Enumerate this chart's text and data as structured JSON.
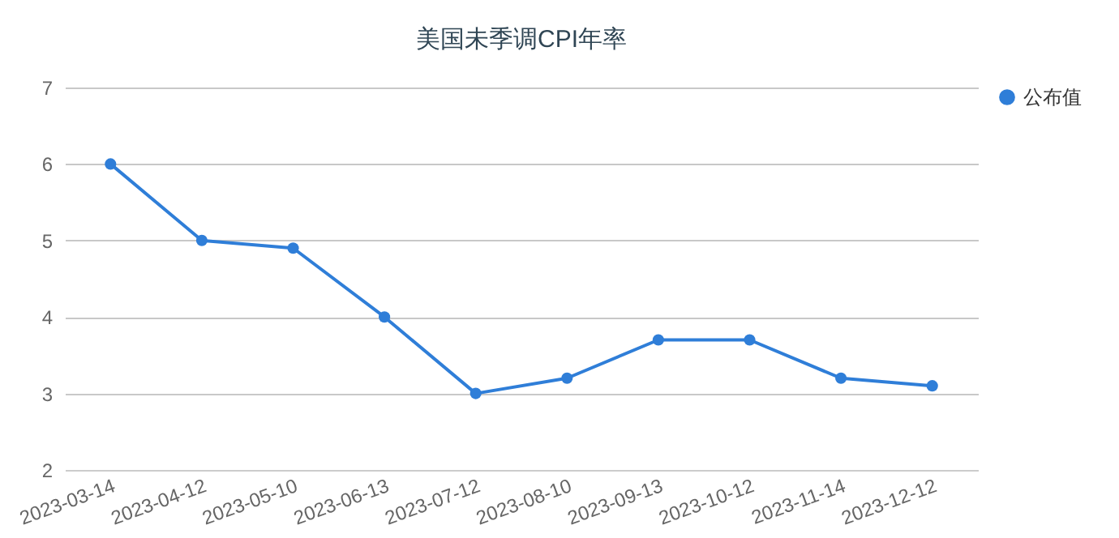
{
  "chart_data": {
    "type": "line",
    "title": "美国未季调CPI年率",
    "categories": [
      "2023-03-14",
      "2023-04-12",
      "2023-05-10",
      "2023-06-13",
      "2023-07-12",
      "2023-08-10",
      "2023-09-13",
      "2023-10-12",
      "2023-11-14",
      "2023-12-12"
    ],
    "series": [
      {
        "name": "公布值",
        "color": "#2f7ed8",
        "values": [
          6.0,
          5.0,
          4.9,
          4.0,
          3.0,
          3.2,
          3.7,
          3.7,
          3.2,
          3.1
        ]
      }
    ],
    "ylim": [
      2,
      7
    ],
    "yticks": [
      2,
      3,
      4,
      5,
      6,
      7
    ],
    "grid": "y",
    "legend": "right",
    "marker": "circle",
    "line_style": "solid"
  }
}
